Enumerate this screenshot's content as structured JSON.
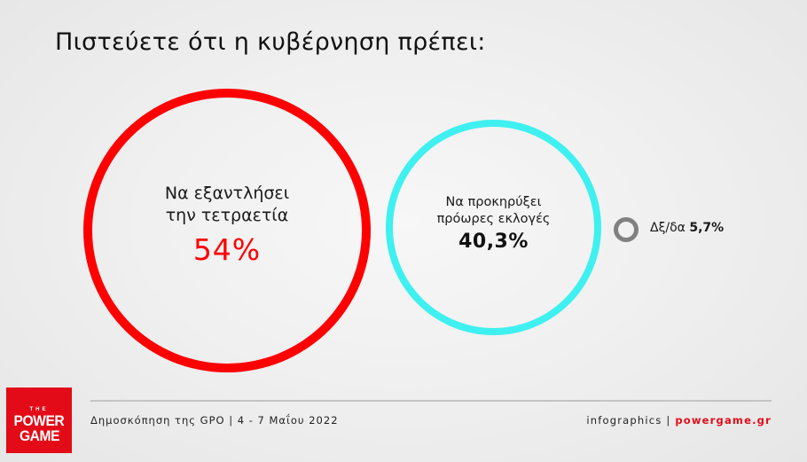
{
  "title": "Πιστεύετε ότι η κυβέρνηση πρέπει:",
  "options": [
    {
      "label_line1": "Να εξαντλήσει",
      "label_line2": "την τετραετία",
      "value": "54%",
      "color": "#ff0000"
    },
    {
      "label_line1": "Να προκηρύξει",
      "label_line2": "πρόωρες εκλογές",
      "value": "40,3%",
      "color": "#3ff0f0"
    },
    {
      "label": "Δξ/δα",
      "value": "5,7%",
      "color": "#808080"
    }
  ],
  "footer": {
    "source": "Δημοσκόπηση της GPO | 4 - 7 Μαΐου 2022",
    "credit": "infographics |",
    "site": "powergame.gr"
  },
  "logo": {
    "line1": "THE",
    "line2": "POWER",
    "line3": "GAME",
    "color": "#e30b17"
  },
  "chart_data": {
    "type": "bubble",
    "title": "Πιστεύετε ότι η κυβέρνηση πρέπει:",
    "categories": [
      "Να εξαντλήσει την τετραετία",
      "Να προκηρύξει πρόωρες εκλογές",
      "Δξ/δα"
    ],
    "values": [
      54,
      40.3,
      5.7
    ],
    "unit": "%",
    "colors": [
      "#ff0000",
      "#3ff0f0",
      "#808080"
    ],
    "source": "Δημοσκόπηση της GPO | 4 - 7 Μαΐου 2022"
  }
}
